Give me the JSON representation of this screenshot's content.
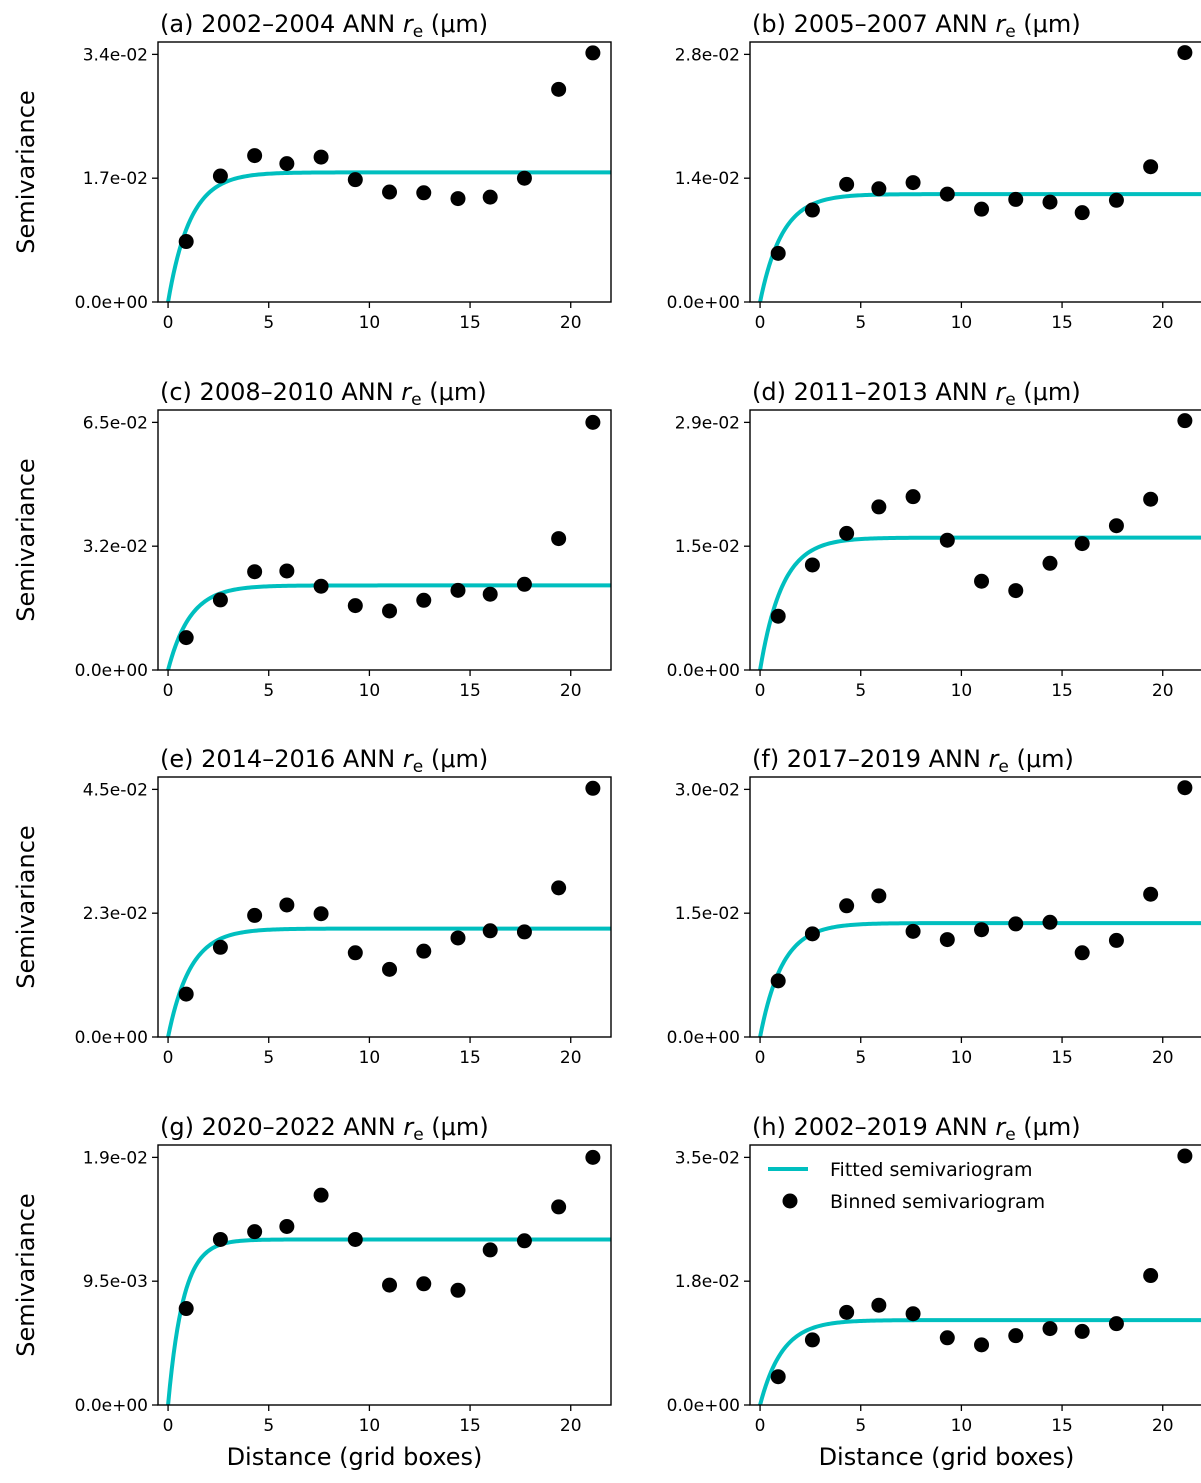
{
  "figure": {
    "ylabel": "Semivariance",
    "xlabel": "Distance (grid boxes)",
    "x_ticks": [
      "0",
      "5",
      "10",
      "15",
      "20"
    ],
    "colors": {
      "fit": "#00bfbf",
      "points": "#000000",
      "axes": "#000000"
    },
    "legend": {
      "fit_label": "Fitted semivariogram",
      "points_label": "Binned semivariogram",
      "location": "upper-left",
      "panel": "h"
    }
  },
  "chart_data": [
    {
      "type": "scatter",
      "title_prefix": "(a) 2002–2004 ANN ",
      "title_var": "r",
      "title_sub": "e",
      "title_suffix": " (μm)",
      "xlim": [
        -0.5,
        22
      ],
      "ylim": [
        0,
        0.034
      ],
      "y_ticks": [
        "0.0e+00",
        "1.7e-02",
        "3.4e-02"
      ],
      "fit": {
        "nugget": 0,
        "sill": 0.0178,
        "range": 1.1
      },
      "points": {
        "x": [
          0.9,
          2.6,
          4.3,
          5.9,
          7.6,
          9.3,
          11.0,
          12.7,
          14.4,
          16.0,
          17.7,
          19.4,
          21.1
        ],
        "y": [
          0.0083,
          0.0173,
          0.0201,
          0.019,
          0.0199,
          0.0168,
          0.0151,
          0.015,
          0.0142,
          0.0144,
          0.017,
          0.0292,
          0.0342
        ]
      }
    },
    {
      "type": "scatter",
      "title_prefix": "(b) 2005–2007 ANN ",
      "title_var": "r",
      "title_sub": "e",
      "title_suffix": " (μm)",
      "xlim": [
        -0.5,
        22
      ],
      "ylim": [
        0,
        0.028
      ],
      "y_ticks": [
        "0.0e+00",
        "1.4e-02",
        "2.8e-02"
      ],
      "fit": {
        "nugget": 0,
        "sill": 0.0122,
        "range": 1.1
      },
      "points": {
        "x": [
          0.9,
          2.6,
          4.3,
          5.9,
          7.6,
          9.3,
          11.0,
          12.7,
          14.4,
          16.0,
          17.7,
          19.4,
          21.1
        ],
        "y": [
          0.0055,
          0.0104,
          0.0133,
          0.0128,
          0.0135,
          0.0122,
          0.0105,
          0.0116,
          0.0113,
          0.0101,
          0.0115,
          0.0153,
          0.0282
        ]
      }
    },
    {
      "type": "scatter",
      "title_prefix": "(c) 2008–2010 ANN ",
      "title_var": "r",
      "title_sub": "e",
      "title_suffix": " (μm)",
      "xlim": [
        -0.5,
        22
      ],
      "ylim": [
        0,
        0.065
      ],
      "y_ticks": [
        "0.0e+00",
        "3.2e-02",
        "6.5e-02"
      ],
      "fit": {
        "nugget": 0,
        "sill": 0.0222,
        "range": 1.1
      },
      "points": {
        "x": [
          0.9,
          2.6,
          4.3,
          5.9,
          7.6,
          9.3,
          11.0,
          12.7,
          14.4,
          16.0,
          17.7,
          19.4,
          21.1
        ],
        "y": [
          0.0085,
          0.0184,
          0.0258,
          0.026,
          0.022,
          0.0169,
          0.0155,
          0.0183,
          0.0209,
          0.0199,
          0.0225,
          0.0345,
          0.065
        ]
      }
    },
    {
      "type": "scatter",
      "title_prefix": "(d) 2011–2013 ANN ",
      "title_var": "r",
      "title_sub": "e",
      "title_suffix": " (μm)",
      "xlim": [
        -0.5,
        22
      ],
      "ylim": [
        0,
        0.029
      ],
      "y_ticks": [
        "0.0e+00",
        "1.5e-02",
        "2.9e-02"
      ],
      "fit": {
        "nugget": 0,
        "sill": 0.0155,
        "range": 1.1
      },
      "points": {
        "x": [
          0.9,
          2.6,
          4.3,
          5.9,
          7.6,
          9.3,
          11.0,
          12.7,
          14.4,
          16.0,
          17.7,
          19.4,
          21.1
        ],
        "y": [
          0.0063,
          0.0123,
          0.016,
          0.0191,
          0.0203,
          0.0152,
          0.0104,
          0.0093,
          0.0125,
          0.0148,
          0.0169,
          0.02,
          0.0292
        ]
      }
    },
    {
      "type": "scatter",
      "title_prefix": "(e) 2014–2016 ANN ",
      "title_var": "r",
      "title_sub": "e",
      "title_suffix": " (μm)",
      "xlim": [
        -0.5,
        22
      ],
      "ylim": [
        0,
        0.045
      ],
      "y_ticks": [
        "0.0e+00",
        "2.3e-02",
        "4.5e-02"
      ],
      "fit": {
        "nugget": 0,
        "sill": 0.0197,
        "range": 1.1
      },
      "points": {
        "x": [
          0.9,
          2.6,
          4.3,
          5.9,
          7.6,
          9.3,
          11.0,
          12.7,
          14.4,
          16.0,
          17.7,
          19.4,
          21.1
        ],
        "y": [
          0.0078,
          0.0163,
          0.0221,
          0.024,
          0.0224,
          0.0153,
          0.0123,
          0.0156,
          0.018,
          0.0193,
          0.0191,
          0.0271,
          0.0452
        ]
      }
    },
    {
      "type": "scatter",
      "title_prefix": "(f) 2017–2019 ANN ",
      "title_var": "r",
      "title_sub": "e",
      "title_suffix": " (μm)",
      "xlim": [
        -0.5,
        22
      ],
      "ylim": [
        0,
        0.03
      ],
      "y_ticks": [
        "0.0e+00",
        "1.5e-02",
        "3.0e-02"
      ],
      "fit": {
        "nugget": 0,
        "sill": 0.0138,
        "range": 1.1
      },
      "points": {
        "x": [
          0.9,
          2.6,
          4.3,
          5.9,
          7.6,
          9.3,
          11.0,
          12.7,
          14.4,
          16.0,
          17.7,
          19.4,
          21.1
        ],
        "y": [
          0.0068,
          0.0125,
          0.0159,
          0.0171,
          0.0128,
          0.0118,
          0.013,
          0.0137,
          0.0139,
          0.0102,
          0.0117,
          0.0173,
          0.0302
        ]
      }
    },
    {
      "type": "scatter",
      "title_prefix": "(g) 2020–2022 ANN ",
      "title_var": "r",
      "title_sub": "e",
      "title_suffix": " (μm)",
      "xlim": [
        -0.5,
        22
      ],
      "ylim": [
        0,
        0.019
      ],
      "y_ticks": [
        "0.0e+00",
        "9.5e-03",
        "1.9e-02"
      ],
      "fit": {
        "nugget": 0,
        "sill": 0.0127,
        "range": 0.75
      },
      "points": {
        "x": [
          0.9,
          2.6,
          4.3,
          5.9,
          7.6,
          9.3,
          11.0,
          12.7,
          14.4,
          16.0,
          17.7,
          19.4,
          21.1
        ],
        "y": [
          0.0074,
          0.0127,
          0.0133,
          0.0137,
          0.0161,
          0.0127,
          0.0092,
          0.0093,
          0.0088,
          0.0119,
          0.0126,
          0.0152,
          0.019
        ]
      }
    },
    {
      "type": "scatter",
      "title_prefix": "(h) 2002–2019 ANN ",
      "title_var": "r",
      "title_sub": "e",
      "title_suffix": " (μm)",
      "xlim": [
        -0.5,
        22
      ],
      "ylim": [
        0,
        0.035
      ],
      "y_ticks": [
        "0.0e+00",
        "1.8e-02",
        "3.5e-02"
      ],
      "fit": {
        "nugget": 0,
        "sill": 0.012,
        "range": 1.1
      },
      "points": {
        "x": [
          0.9,
          2.6,
          4.3,
          5.9,
          7.6,
          9.3,
          11.0,
          12.7,
          14.4,
          16.0,
          17.7,
          19.4,
          21.1
        ],
        "y": [
          0.004,
          0.0092,
          0.0131,
          0.0141,
          0.0129,
          0.0095,
          0.0085,
          0.0098,
          0.0108,
          0.0104,
          0.0115,
          0.0183,
          0.0352
        ]
      }
    }
  ]
}
